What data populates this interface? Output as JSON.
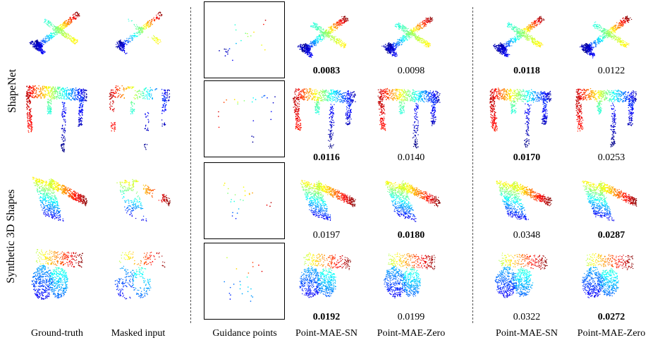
{
  "row_groups": [
    "ShapeNet",
    "Synthetic 3D Shapes"
  ],
  "columns": [
    "Ground-truth",
    "Masked input",
    "Guidance points",
    "Point-MAE-SN",
    "Point-MAE-Zero",
    "Point-MAE-SN",
    "Point-MAE-Zero"
  ],
  "rows": [
    {
      "shape": "airplane",
      "scores": [
        {
          "value": "0.0083",
          "best": true
        },
        {
          "value": "0.0098",
          "best": false
        },
        {
          "value": "0.0118",
          "best": true
        },
        {
          "value": "0.0122",
          "best": false
        }
      ]
    },
    {
      "shape": "table",
      "scores": [
        {
          "value": "0.0116",
          "best": true
        },
        {
          "value": "0.0140",
          "best": false
        },
        {
          "value": "0.0170",
          "best": true
        },
        {
          "value": "0.0253",
          "best": false
        }
      ]
    },
    {
      "shape": "synthetic-a",
      "scores": [
        {
          "value": "0.0197",
          "best": false
        },
        {
          "value": "0.0180",
          "best": true
        },
        {
          "value": "0.0348",
          "best": false
        },
        {
          "value": "0.0287",
          "best": true
        }
      ]
    },
    {
      "shape": "synthetic-b",
      "scores": [
        {
          "value": "0.0192",
          "best": true
        },
        {
          "value": "0.0199",
          "best": false
        },
        {
          "value": "0.0322",
          "best": false
        },
        {
          "value": "0.0272",
          "best": true
        }
      ]
    }
  ],
  "colormap": [
    "#00007f",
    "#0000ff",
    "#007fff",
    "#00ffff",
    "#7fff7f",
    "#ffff00",
    "#ff7f00",
    "#ff0000",
    "#7f0000"
  ]
}
